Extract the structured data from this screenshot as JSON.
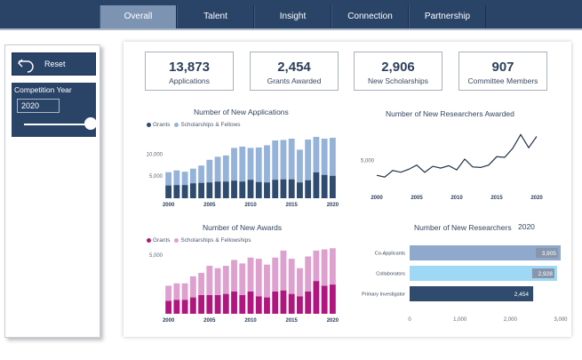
{
  "nav": {
    "tabs": [
      {
        "label": "Overall",
        "active": true
      },
      {
        "label": "Talent"
      },
      {
        "label": "Insight"
      },
      {
        "label": "Connection"
      },
      {
        "label": "Partnership"
      }
    ]
  },
  "sidebar": {
    "reset_label": "Reset",
    "reset_icon": "undo-arrow-icon",
    "year_filter_title": "Competition Year",
    "year_value": "2020"
  },
  "kpis": [
    {
      "value": "13,873",
      "label": "Applications"
    },
    {
      "value": "2,454",
      "label": "Grants Awarded"
    },
    {
      "value": "2,906",
      "label": "New Scholarships"
    },
    {
      "value": "907",
      "label": "Committee Members"
    }
  ],
  "colors": {
    "nav_bg": "#2a4468",
    "grants_blue": "#2f4b6e",
    "scholarships_blue": "#95b3d8",
    "grants_magenta": "#b0177e",
    "scholarships_pink": "#dda0cf",
    "line": "#1f3148",
    "bar_co_applicants": "#8fa9cc",
    "bar_collaborators": "#9fd8f4",
    "bar_primary": "#2f4b6e"
  },
  "chart_data": [
    {
      "type": "bar",
      "stacked": true,
      "title": "Number of New Applications",
      "x": [
        2000,
        2001,
        2002,
        2003,
        2004,
        2005,
        2006,
        2007,
        2008,
        2009,
        2010,
        2011,
        2012,
        2013,
        2014,
        2015,
        2016,
        2017,
        2018,
        2019,
        2020
      ],
      "x_tick_labels": [
        "2000",
        "2005",
        "2010",
        "2015",
        "2020"
      ],
      "y_tick_labels": [
        "5,000",
        "10,000"
      ],
      "ylim": [
        0,
        14500
      ],
      "series": [
        {
          "name": "Grants",
          "values": [
            2900,
            3000,
            3000,
            3400,
            3500,
            3600,
            3800,
            3800,
            4000,
            3800,
            4200,
            3700,
            3600,
            4200,
            4300,
            4300,
            3600,
            4100,
            5900,
            5300,
            5100
          ]
        },
        {
          "name": "Scholarships & Fellows",
          "values": [
            3000,
            3300,
            3000,
            3300,
            3900,
            5100,
            5600,
            5900,
            7400,
            7900,
            7200,
            7800,
            8400,
            8900,
            8900,
            9200,
            7400,
            9200,
            8000,
            8200,
            8600
          ]
        }
      ],
      "legend": "top-left",
      "grid": false
    },
    {
      "type": "line",
      "title": "Number of New Researchers Awarded",
      "x": [
        2000,
        2001,
        2002,
        2003,
        2004,
        2005,
        2006,
        2007,
        2008,
        2009,
        2010,
        2011,
        2012,
        2013,
        2014,
        2015,
        2016,
        2017,
        2018,
        2019,
        2020
      ],
      "x_tick_labels": [
        "2000",
        "2005",
        "2010",
        "2015",
        "2020"
      ],
      "y_tick_labels": [
        "5,000"
      ],
      "ylim": [
        0,
        11000
      ],
      "values": [
        2500,
        2200,
        3300,
        3000,
        3500,
        4200,
        3000,
        4000,
        3700,
        4100,
        3400,
        5200,
        3900,
        3800,
        4200,
        5600,
        5500,
        7000,
        9300,
        7100,
        9000
      ],
      "grid": false
    },
    {
      "type": "bar",
      "stacked": true,
      "title": "Number of New Awards",
      "x": [
        2000,
        2001,
        2002,
        2003,
        2004,
        2005,
        2006,
        2007,
        2008,
        2009,
        2010,
        2011,
        2012,
        2013,
        2014,
        2015,
        2016,
        2017,
        2018,
        2019,
        2020
      ],
      "x_tick_labels": [
        "2000",
        "2005",
        "2010",
        "2015",
        "2020"
      ],
      "y_tick_labels": [
        "5,000"
      ],
      "ylim": [
        0,
        6000
      ],
      "series": [
        {
          "name": "Grants",
          "values": [
            1100,
            1200,
            1200,
            1400,
            1600,
            1600,
            1600,
            1700,
            1900,
            1600,
            1900,
            1500,
            1400,
            1900,
            2000,
            1700,
            1500,
            1900,
            2800,
            2400,
            2500
          ]
        },
        {
          "name": "Scholarships & Fellowships",
          "values": [
            1300,
            1400,
            1400,
            1800,
            1900,
            2500,
            2300,
            2400,
            2700,
            2700,
            2900,
            3200,
            2800,
            2900,
            3400,
            3000,
            2400,
            3000,
            2600,
            3100,
            3100
          ]
        }
      ],
      "legend": "top-left",
      "grid": false
    },
    {
      "type": "bar",
      "orientation": "horizontal",
      "title": "Number of New Researchers",
      "subtitle": "2020",
      "categories": [
        "Co-Applicants",
        "Collaborators",
        "Primary Investigator"
      ],
      "values": [
        3905,
        2928,
        2454
      ],
      "value_labels": [
        "3,905",
        "2,928",
        "2,454"
      ],
      "x_tick_labels": [
        "0",
        "1,000",
        "2,000",
        "3,000"
      ],
      "xlim": [
        0,
        3000
      ],
      "grid": false
    }
  ]
}
